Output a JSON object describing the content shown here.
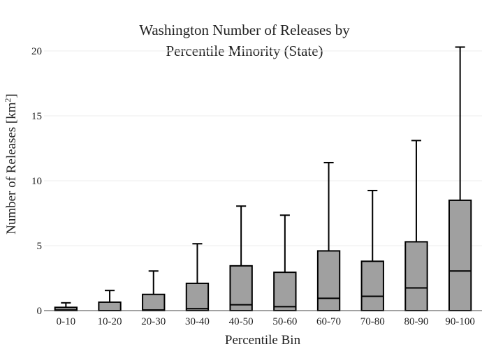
{
  "chart_data": {
    "type": "box",
    "title_lines": [
      "Washington Number of Releases by",
      "Percentile Minority (State)"
    ],
    "xlabel": "Percentile Bin",
    "ylabel_main": "Number of Releases  [km",
    "ylabel_sup": "2",
    "ylabel_end": "]",
    "ylim": [
      0,
      20.7
    ],
    "yticks": [
      0,
      5,
      10,
      15,
      20
    ],
    "grid": true,
    "box_color": "#a0a0a0",
    "categories": [
      "0-10",
      "10-20",
      "20-30",
      "30-40",
      "40-50",
      "50-60",
      "60-70",
      "70-80",
      "80-90",
      "90-100"
    ],
    "boxes": [
      {
        "category": "0-10",
        "min": 0,
        "q1": 0,
        "median": 0.05,
        "q3": 0.25,
        "max": 0.6
      },
      {
        "category": "10-20",
        "min": 0,
        "q1": 0,
        "median": 0,
        "q3": 0.65,
        "max": 1.55
      },
      {
        "category": "20-30",
        "min": 0,
        "q1": 0,
        "median": 0.05,
        "q3": 1.25,
        "max": 3.05
      },
      {
        "category": "30-40",
        "min": 0,
        "q1": 0,
        "median": 0.15,
        "q3": 2.1,
        "max": 5.15
      },
      {
        "category": "40-50",
        "min": 0,
        "q1": 0,
        "median": 0.45,
        "q3": 3.45,
        "max": 8.05
      },
      {
        "category": "50-60",
        "min": 0,
        "q1": 0,
        "median": 0.3,
        "q3": 2.95,
        "max": 7.35
      },
      {
        "category": "60-70",
        "min": 0,
        "q1": 0,
        "median": 0.95,
        "q3": 4.6,
        "max": 11.4
      },
      {
        "category": "70-80",
        "min": 0,
        "q1": 0,
        "median": 1.1,
        "q3": 3.8,
        "max": 9.25
      },
      {
        "category": "80-90",
        "min": 0,
        "q1": 0,
        "median": 1.75,
        "q3": 5.3,
        "max": 13.1
      },
      {
        "category": "90-100",
        "min": 0,
        "q1": 0,
        "median": 3.05,
        "q3": 8.5,
        "max": 20.3
      }
    ]
  }
}
